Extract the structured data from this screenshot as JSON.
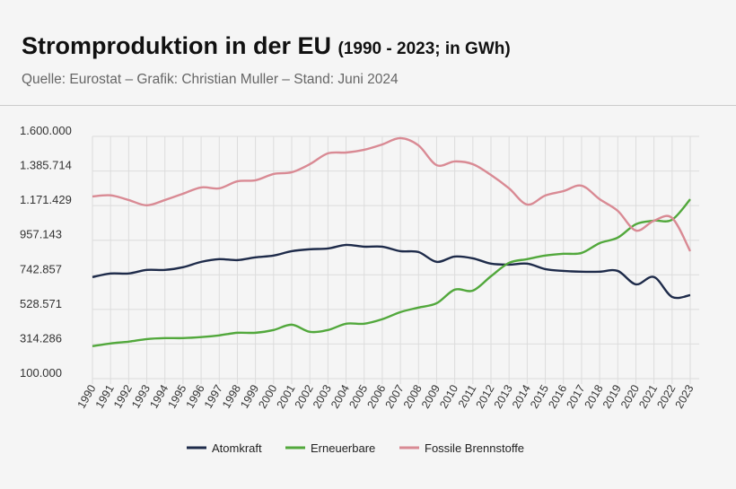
{
  "header": {
    "title": "Stromproduktion in der EU",
    "title_suffix": "(1990 - 2023; in GWh)",
    "source": "Quelle: Eurostat – Grafik: Christian Muller – Stand: Juni 2024"
  },
  "chart_data": {
    "type": "line",
    "title": "Stromproduktion in der EU (1990 - 2023; in GWh)",
    "xlabel": "",
    "ylabel": "",
    "ylim": [
      100000,
      1600000
    ],
    "yticks": [
      "1.600.000",
      "1.385.714",
      "1.171.429",
      "957.143",
      "742.857",
      "528.571",
      "314.286",
      "100.000"
    ],
    "grid": true,
    "legend": "bottom",
    "x": [
      "1990",
      "1991",
      "1992",
      "1993",
      "1994",
      "1995",
      "1996",
      "1997",
      "1998",
      "1999",
      "2000",
      "2001",
      "2002",
      "2003",
      "2004",
      "2005",
      "2006",
      "2007",
      "2008",
      "2009",
      "2010",
      "2011",
      "2012",
      "2013",
      "2014",
      "2015",
      "2016",
      "2017",
      "2018",
      "2019",
      "2020",
      "2021",
      "2022",
      "2023"
    ],
    "series": [
      {
        "name": "Atomkraft",
        "color": "#1e2b4a",
        "values": [
          729000,
          751000,
          751000,
          773000,
          773000,
          790000,
          823000,
          840000,
          834000,
          851000,
          862000,
          889000,
          901000,
          906000,
          928000,
          917000,
          917000,
          889000,
          884000,
          823000,
          856000,
          845000,
          812000,
          806000,
          812000,
          778000,
          767000,
          762000,
          762000,
          767000,
          684000,
          729000,
          606000,
          617000
        ]
      },
      {
        "name": "Erneuerbare",
        "color": "#52a83c",
        "values": [
          301000,
          318000,
          329000,
          345000,
          351000,
          351000,
          357000,
          368000,
          384000,
          384000,
          401000,
          434000,
          390000,
          401000,
          440000,
          440000,
          468000,
          512000,
          540000,
          567000,
          651000,
          645000,
          734000,
          817000,
          840000,
          862000,
          873000,
          878000,
          939000,
          973000,
          1056000,
          1078000,
          1084000,
          1211000
        ]
      },
      {
        "name": "Fossile Brennstoffe",
        "color": "#d98a94",
        "values": [
          1228000,
          1235000,
          1206000,
          1173000,
          1206000,
          1245000,
          1284000,
          1278000,
          1322000,
          1328000,
          1367000,
          1378000,
          1428000,
          1495000,
          1500000,
          1517000,
          1550000,
          1589000,
          1544000,
          1422000,
          1445000,
          1428000,
          1361000,
          1278000,
          1178000,
          1234000,
          1261000,
          1295000,
          1211000,
          1139000,
          1017000,
          1078000,
          1095000,
          889000
        ]
      }
    ]
  }
}
